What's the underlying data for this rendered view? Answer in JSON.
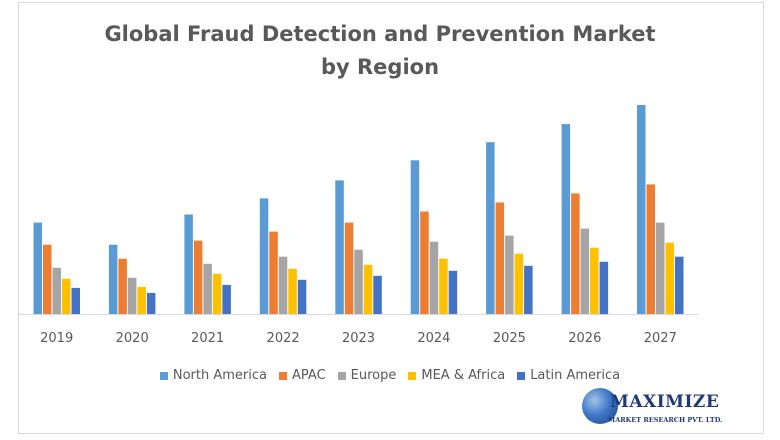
{
  "chart_data": {
    "type": "bar",
    "title_lines": [
      "Global Fraud Detection and Prevention Market",
      "by Region"
    ],
    "xlabel": "",
    "ylabel": "",
    "grid": false,
    "legend_position": "bottom",
    "categories": [
      "2019",
      "2020",
      "2021",
      "2022",
      "2023",
      "2024",
      "2025",
      "2026",
      "2027"
    ],
    "series": [
      {
        "name": "North America",
        "color": "#5b9bd5",
        "values": [
          91,
          69,
          99,
          115,
          133,
          153,
          171,
          189,
          208
        ]
      },
      {
        "name": "APAC",
        "color": "#ed7d31",
        "values": [
          69,
          55,
          73,
          82,
          91,
          102,
          111,
          120,
          129
        ]
      },
      {
        "name": "Europe",
        "color": "#a5a5a5",
        "values": [
          46,
          36,
          50,
          57,
          64,
          72,
          78,
          85,
          91
        ]
      },
      {
        "name": "MEA & Africa",
        "color": "#ffc000",
        "values": [
          35,
          27,
          40,
          45,
          49,
          55,
          60,
          66,
          71
        ]
      },
      {
        "name": "Latin America",
        "color": "#4472c4",
        "values": [
          26,
          21,
          29,
          34,
          38,
          43,
          48,
          52,
          57
        ]
      }
    ],
    "ylim": [
      0,
      220
    ]
  },
  "watermark": {
    "name": "MAXIMIZE",
    "subtitle": "MARKET RESEARCH PVT. LTD."
  }
}
